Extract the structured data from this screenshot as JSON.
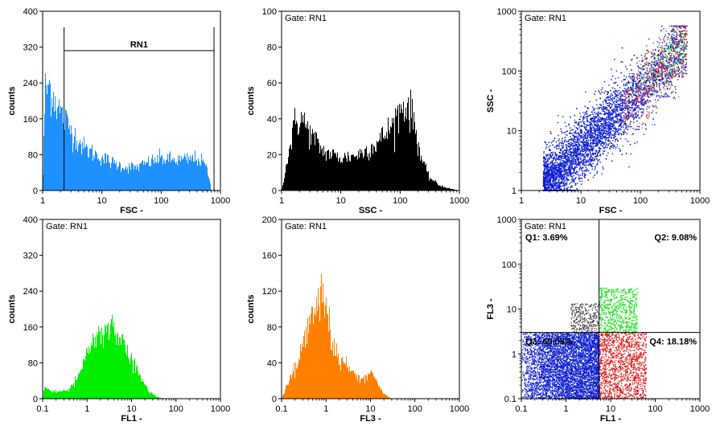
{
  "chart_data": [
    {
      "panel": "fsc-histogram",
      "type": "histogram",
      "xlabel": "FSC  -",
      "ylabel": "counts",
      "xscale": "log",
      "xlim": [
        1,
        1000
      ],
      "ylim": [
        0,
        400
      ],
      "xticks": [
        "1",
        "10",
        "100",
        "1000"
      ],
      "yticks": [
        "0",
        "80",
        "160",
        "240",
        "320",
        "400"
      ],
      "color": "#1e90ff",
      "gate_label": "",
      "region": {
        "name": "RN1",
        "from": 2.3,
        "to": 780
      },
      "profile": [
        [
          1,
          0
        ],
        [
          1.1,
          220
        ],
        [
          1.3,
          235
        ],
        [
          1.6,
          205
        ],
        [
          2,
          175
        ],
        [
          3,
          135
        ],
        [
          5,
          95
        ],
        [
          8,
          80
        ],
        [
          15,
          62
        ],
        [
          25,
          52
        ],
        [
          40,
          52
        ],
        [
          60,
          62
        ],
        [
          100,
          72
        ],
        [
          150,
          68
        ],
        [
          250,
          68
        ],
        [
          400,
          72
        ],
        [
          550,
          58
        ],
        [
          650,
          30
        ],
        [
          700,
          0
        ]
      ]
    },
    {
      "panel": "ssc-histogram",
      "type": "histogram",
      "xlabel": "SSC  -",
      "ylabel": "counts",
      "xscale": "log",
      "xlim": [
        1,
        1000
      ],
      "ylim": [
        0,
        100
      ],
      "xticks": [
        "1",
        "10",
        "100",
        "1000"
      ],
      "yticks": [
        "0",
        "20",
        "40",
        "60",
        "80",
        "100"
      ],
      "color": "#000000",
      "gate_label": "Gate: RN1",
      "profile": [
        [
          1,
          0
        ],
        [
          1.3,
          20
        ],
        [
          1.7,
          38
        ],
        [
          2.2,
          40
        ],
        [
          3,
          32
        ],
        [
          5,
          22
        ],
        [
          10,
          18
        ],
        [
          20,
          20
        ],
        [
          40,
          26
        ],
        [
          70,
          35
        ],
        [
          100,
          45
        ],
        [
          130,
          48
        ],
        [
          170,
          40
        ],
        [
          220,
          20
        ],
        [
          300,
          8
        ],
        [
          450,
          3
        ],
        [
          700,
          1
        ],
        [
          1000,
          0
        ]
      ]
    },
    {
      "panel": "fsc-ssc-dotplot",
      "type": "scatter",
      "xlabel": "FSC  -",
      "ylabel": "SSC  -",
      "xscale": "log",
      "yscale": "log",
      "xlim": [
        1,
        1000
      ],
      "ylim": [
        1,
        1000
      ],
      "xticks": [
        "1",
        "10",
        "100",
        "1000"
      ],
      "yticks": [
        "1",
        "10",
        "100",
        "1000"
      ],
      "gate_label": "Gate: RN1",
      "population": {
        "x_range": [
          2.3,
          600
        ],
        "y_range": [
          1,
          600
        ],
        "trend": "diagonal",
        "colors": [
          "#1020d0",
          "#d81818",
          "#10c010",
          "#7f7f7f"
        ]
      }
    },
    {
      "panel": "fl1-histogram",
      "type": "histogram",
      "xlabel": "FL1  -",
      "ylabel": "counts",
      "xscale": "log",
      "xlim": [
        0.1,
        1000
      ],
      "ylim": [
        0,
        400
      ],
      "xticks": [
        "0.1",
        "1",
        "10",
        "100",
        "1000"
      ],
      "yticks": [
        "0",
        "80",
        "160",
        "240",
        "320",
        "400"
      ],
      "color": "#00ee00",
      "gate_label": "Gate: RN1",
      "profile": [
        [
          0.1,
          0
        ],
        [
          0.11,
          25
        ],
        [
          0.15,
          18
        ],
        [
          0.25,
          15
        ],
        [
          0.4,
          22
        ],
        [
          0.6,
          45
        ],
        [
          1,
          95
        ],
        [
          1.5,
          135
        ],
        [
          2.5,
          160
        ],
        [
          4,
          148
        ],
        [
          6,
          130
        ],
        [
          10,
          90
        ],
        [
          15,
          50
        ],
        [
          25,
          15
        ],
        [
          40,
          3
        ],
        [
          60,
          0
        ]
      ]
    },
    {
      "panel": "fl3-histogram",
      "type": "histogram",
      "xlabel": "FL3  -",
      "ylabel": "counts",
      "xscale": "log",
      "xlim": [
        0.1,
        1000
      ],
      "ylim": [
        0,
        200
      ],
      "xticks": [
        "0.1",
        "1",
        "10",
        "100",
        "1000"
      ],
      "yticks": [
        "0",
        "40",
        "80",
        "120",
        "160",
        "200"
      ],
      "color": "#ff8000",
      "gate_label": "Gate: RN1",
      "profile": [
        [
          0.1,
          0
        ],
        [
          0.15,
          22
        ],
        [
          0.25,
          45
        ],
        [
          0.4,
          80
        ],
        [
          0.6,
          108
        ],
        [
          0.8,
          112
        ],
        [
          1.1,
          88
        ],
        [
          1.6,
          52
        ],
        [
          2.5,
          38
        ],
        [
          4,
          30
        ],
        [
          6,
          22
        ],
        [
          10,
          28
        ],
        [
          13,
          24
        ],
        [
          17,
          12
        ],
        [
          22,
          4
        ],
        [
          30,
          0
        ]
      ]
    },
    {
      "panel": "fl1-fl3-quadrant",
      "type": "scatter",
      "xlabel": "FL1  -",
      "ylabel": "FL3  -",
      "xscale": "log",
      "yscale": "log",
      "xlim": [
        0.1,
        1000
      ],
      "ylim": [
        0.1,
        1000
      ],
      "xticks": [
        "0.1",
        "1",
        "10",
        "100",
        "1000"
      ],
      "yticks": [
        "0.1",
        "1",
        "10",
        "100",
        "1000"
      ],
      "gate_label": "Gate: RN1",
      "quadrant_lines": {
        "x": 5.5,
        "y": 3
      },
      "quadrants": [
        {
          "name": "Q1",
          "percent": "3.69%",
          "label": "Q1: 3.69%",
          "color": "#404040"
        },
        {
          "name": "Q2",
          "percent": "9.08%",
          "label": "Q2: 9.08%",
          "color": "#10e010"
        },
        {
          "name": "Q3",
          "percent": "69.05%",
          "label": "Q3: 69.05%",
          "color": "#1020d0"
        },
        {
          "name": "Q4",
          "percent": "18.18%",
          "label": "Q4: 18.18%",
          "color": "#e01010"
        }
      ]
    }
  ]
}
